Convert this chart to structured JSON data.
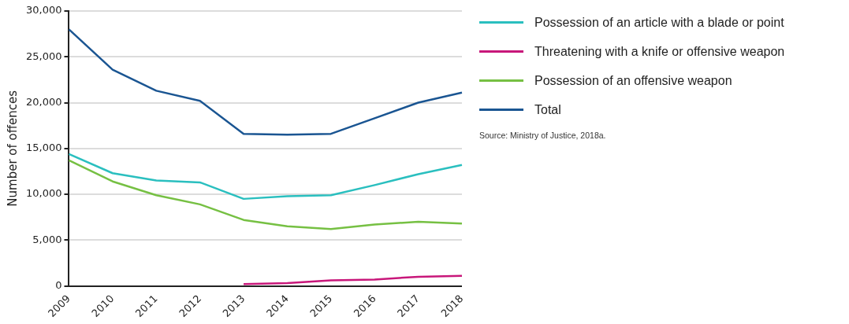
{
  "chart_data": {
    "type": "line",
    "ylabel": "Number of offences",
    "categories": [
      "2009",
      "2010",
      "2011",
      "2012",
      "2013",
      "2014",
      "2015",
      "2016",
      "2017",
      "2018"
    ],
    "series": [
      {
        "name": "Possession of an article with a blade or point",
        "color": "#2abfbf",
        "values": [
          14400,
          12300,
          11500,
          11300,
          9500,
          9800,
          9900,
          11000,
          12200,
          13200
        ]
      },
      {
        "name": "Threatening with a knife or offensive weapon",
        "color": "#c8177a",
        "values": [
          null,
          null,
          null,
          null,
          200,
          300,
          600,
          700,
          1000,
          1100
        ]
      },
      {
        "name": "Possession of an offensive weapon",
        "color": "#76c043",
        "values": [
          13700,
          11400,
          9900,
          8900,
          7200,
          6500,
          6200,
          6700,
          7000,
          6800
        ]
      },
      {
        "name": "Total",
        "color": "#1a5592",
        "values": [
          28000,
          23600,
          21300,
          20200,
          16600,
          16500,
          16600,
          18300,
          20000,
          21100
        ]
      }
    ],
    "ylim": [
      0,
      30000
    ],
    "yticks": [
      {
        "value": 0,
        "label": "0"
      },
      {
        "value": 5000,
        "label": "5,000"
      },
      {
        "value": 10000,
        "label": "10,000"
      },
      {
        "value": 15000,
        "label": "15,000"
      },
      {
        "value": 20000,
        "label": "20,000"
      },
      {
        "value": 25000,
        "label": "25,000"
      },
      {
        "value": 30000,
        "label": "30,000"
      }
    ],
    "grid": "y",
    "legend": "top right",
    "marker": "none",
    "line_style": "solid",
    "annotations": [
      "Source: Ministry of Justice, 2018a."
    ]
  }
}
